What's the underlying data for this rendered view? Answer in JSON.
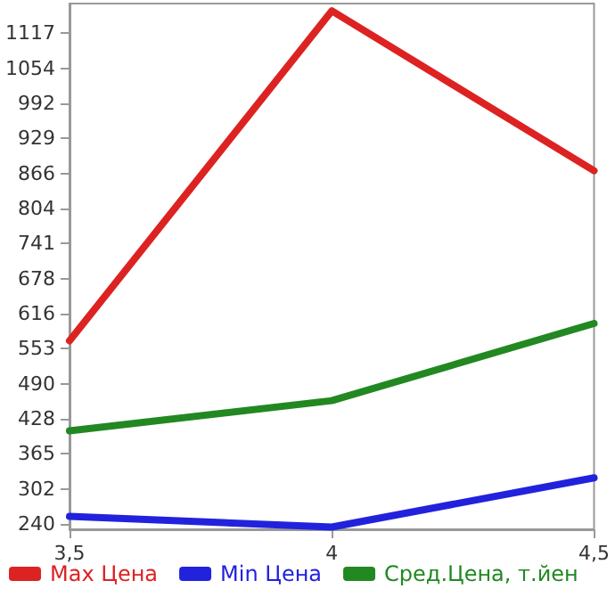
{
  "chart_data": {
    "type": "line",
    "x": [
      3.5,
      4,
      4.5
    ],
    "series": [
      {
        "name": "Max Цена",
        "color": "#dd2222",
        "values": [
          567,
          1157,
          871
        ]
      },
      {
        "name": "Min Цена",
        "color": "#2222dd",
        "values": [
          253,
          234,
          322
        ]
      },
      {
        "name": "Сред.Цена, т.йен",
        "color": "#228822",
        "values": [
          406,
          460,
          598
        ]
      }
    ],
    "xlim": [
      3.5,
      4.5
    ],
    "xticks": [
      {
        "value": 3.5,
        "label": "3,5"
      },
      {
        "value": 4,
        "label": "4"
      },
      {
        "value": 4.5,
        "label": "4,5"
      }
    ],
    "ylim": [
      230,
      1170
    ],
    "yticks": [
      240,
      302,
      365,
      428,
      490,
      553,
      616,
      678,
      741,
      804,
      866,
      929,
      992,
      1054,
      1117
    ],
    "grid": false,
    "legend": "bottom",
    "marker": "none",
    "line_style": "solid"
  }
}
